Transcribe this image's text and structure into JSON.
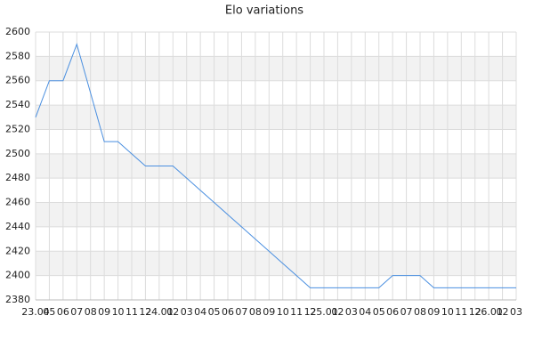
{
  "chart_data": {
    "type": "line",
    "title": "Elo variations",
    "categories": [
      "23.04",
      "05",
      "06",
      "07",
      "08",
      "09",
      "10",
      "11",
      "12",
      "24.01",
      "02",
      "03",
      "04",
      "05",
      "06",
      "07",
      "08",
      "09",
      "10",
      "11",
      "12",
      "25.01",
      "02",
      "03",
      "04",
      "05",
      "06",
      "07",
      "08",
      "09",
      "10",
      "11",
      "12",
      "26.01",
      "02",
      "03"
    ],
    "values": [
      2530,
      2560,
      2560,
      2590,
      2550,
      2510,
      2510,
      2500,
      2490,
      2490,
      2490,
      2480,
      2470,
      2460,
      2450,
      2440,
      2430,
      2420,
      2410,
      2400,
      2390,
      2390,
      2390,
      2390,
      2390,
      2390,
      2400,
      2400,
      2400,
      2390,
      2390,
      2390,
      2390,
      2390,
      2390,
      2390
    ],
    "color": "#4a8fe0",
    "ylim": [
      2380,
      2600
    ],
    "yticks": [
      2380,
      2400,
      2420,
      2440,
      2460,
      2480,
      2500,
      2520,
      2540,
      2560,
      2580,
      2600
    ],
    "grid": true
  }
}
